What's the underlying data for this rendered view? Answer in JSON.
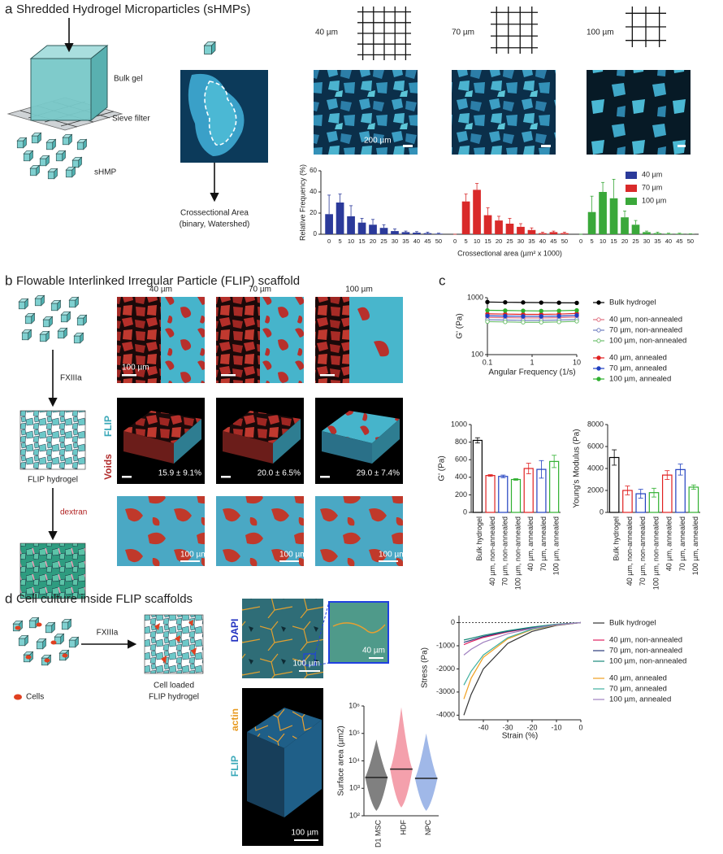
{
  "panels": {
    "a": {
      "letter": "a",
      "title": "Shredded Hydrogel Microparticles (sHMPs)",
      "bulk_gel": "Bulk gel",
      "sieve_filter": "Sieve filter",
      "shmp": "sHMP",
      "area_label": [
        "Crossectional Area",
        "(binary, Watershed)"
      ],
      "sieves": [
        "40 µm",
        "70 µm",
        "100 µm"
      ],
      "scale_bar": "200 µm"
    },
    "b": {
      "letter": "b",
      "title": "Flowable Interlinked Irregular Particle (FLIP) scaffold",
      "fxiiia": "FXIIIa",
      "flip_hydrogel": "FLIP hydrogel",
      "dextran": "dextran",
      "columns": [
        "40 µm",
        "70 µm",
        "100 µm"
      ],
      "scale_bar": "100 µm",
      "flip": "FLIP",
      "voids": "Voids",
      "porosity": [
        "15.9 ± 9.1%",
        "20.0 ± 6.5%",
        "29.0 ± 7.4%"
      ]
    },
    "c": {
      "letter": "c"
    },
    "d": {
      "letter": "d",
      "title": "Cell culture inside FLIP scaffolds",
      "fxiiia": "FXIIIa",
      "cells": "Cells",
      "cell_loaded": [
        "Cell loaded",
        "FLIP hydrogel"
      ],
      "stain_flip": "FLIP",
      "stain_actin": "actin",
      "stain_dapi": "DAPI",
      "zoom_scale": "40 µm",
      "scale_bar": "100 µm"
    }
  },
  "chart_data": [
    {
      "type": "bar",
      "ylabel": "Relative Frequency (%)",
      "xlabel": "Crossectional area (µm² x 1000)",
      "categories": [
        "0",
        "5",
        "10",
        "15",
        "20",
        "25",
        "30",
        "35",
        "40",
        "45",
        "50"
      ],
      "series": [
        {
          "name": "40 µm",
          "color": "#2b3a9a",
          "values": [
            19,
            30,
            17,
            11,
            9,
            6,
            3,
            2,
            1.5,
            1,
            0.5
          ],
          "errors": [
            18,
            8,
            10,
            4,
            5,
            3,
            2,
            1,
            1,
            1,
            0.5
          ]
        },
        {
          "name": "70 µm",
          "color": "#d92a2a",
          "values": [
            0,
            31,
            42,
            18,
            13,
            10,
            7,
            4,
            1,
            2,
            1
          ],
          "errors": [
            0,
            7,
            6,
            7,
            4,
            5,
            3,
            2,
            1,
            1,
            1
          ]
        },
        {
          "name": "100 µm",
          "color": "#3aa83a",
          "values": [
            0,
            21,
            40,
            34,
            16,
            9,
            2,
            1,
            0.5,
            0.5,
            0.2
          ],
          "errors": [
            0,
            15,
            9,
            18,
            6,
            4,
            1,
            1,
            0.5,
            0.5,
            0.2
          ]
        }
      ],
      "ylim": [
        0,
        60
      ],
      "yticks": [
        0,
        20,
        40,
        60
      ],
      "legend": "upper right"
    },
    {
      "type": "line",
      "xlabel": "Angular Frequency (1/s)",
      "ylabel": "G' (Pa)",
      "x": [
        0.1,
        0.25,
        0.63,
        1.6,
        4,
        10
      ],
      "xlog": true,
      "ylog": true,
      "xlim": [
        0.1,
        10
      ],
      "ylim": [
        100,
        1000
      ],
      "xticks": [
        0.1,
        1,
        10
      ],
      "yticks": [
        100,
        1000
      ],
      "series": [
        {
          "name": "Bulk hydrogel",
          "color": "#000000",
          "marker": "filled",
          "values": [
            840,
            830,
            825,
            820,
            815,
            810
          ]
        },
        {
          "name": "40 µm, non-annealed",
          "color": "#e07080",
          "marker": "open",
          "values": [
            450,
            445,
            440,
            440,
            445,
            460
          ]
        },
        {
          "name": "70 µm, non-annealed",
          "color": "#7080c0",
          "marker": "open",
          "values": [
            410,
            405,
            400,
            400,
            405,
            415
          ]
        },
        {
          "name": "100 µm, non-annealed",
          "color": "#70c070",
          "marker": "open",
          "values": [
            380,
            375,
            370,
            370,
            375,
            385
          ]
        },
        {
          "name": "40 µm, annealed",
          "color": "#e02020",
          "marker": "filled",
          "values": [
            520,
            515,
            510,
            510,
            515,
            530
          ]
        },
        {
          "name": "70 µm, annealed",
          "color": "#2040c0",
          "marker": "filled",
          "values": [
            480,
            475,
            470,
            470,
            475,
            490
          ]
        },
        {
          "name": "100 µm, annealed",
          "color": "#30b030",
          "marker": "filled",
          "values": [
            600,
            595,
            590,
            585,
            590,
            600
          ]
        }
      ]
    },
    {
      "type": "bar",
      "ylabel": "G' (Pa)",
      "categories": [
        "Bulk hydrogel",
        "40 µm, non-annealed",
        "70 µm, non-annealed",
        "100 µm, non-annealed",
        "40 µm, annealed",
        "70 µm, annealed",
        "100 µm, annealed"
      ],
      "colors": [
        "#000000",
        "#e02020",
        "#2040c0",
        "#30b030",
        "#e02020",
        "#2040c0",
        "#30b030"
      ],
      "values": [
        820,
        420,
        410,
        375,
        500,
        490,
        580
      ],
      "errors": [
        30,
        10,
        15,
        10,
        60,
        100,
        70
      ],
      "ylim": [
        0,
        1000
      ],
      "yticks": [
        0,
        200,
        400,
        600,
        800,
        1000
      ]
    },
    {
      "type": "bar",
      "ylabel": "Young's Modulus (Pa)",
      "categories": [
        "Bulk hydrogel",
        "40 µm, non-annealed",
        "70 µm, non-annealed",
        "100 µm, non-annealed",
        "40 µm, annealed",
        "70 µm, annealed",
        "100 µm, annealed"
      ],
      "colors": [
        "#000000",
        "#e02020",
        "#2040c0",
        "#30b030",
        "#e02020",
        "#2040c0",
        "#30b030"
      ],
      "values": [
        5000,
        2000,
        1700,
        1800,
        3400,
        3900,
        2300
      ],
      "errors": [
        700,
        400,
        400,
        400,
        400,
        500,
        200
      ],
      "ylim": [
        0,
        8000
      ],
      "yticks": [
        0,
        2000,
        4000,
        6000,
        8000
      ]
    },
    {
      "type": "line",
      "xlabel": "Strain (%)",
      "ylabel": "Stress (Pa)",
      "x": [
        -48,
        -45,
        -40,
        -30,
        -20,
        -10,
        0
      ],
      "xlim": [
        -50,
        0
      ],
      "ylim": [
        -4200,
        300
      ],
      "xticks": [
        -40,
        -30,
        -20,
        -10,
        0
      ],
      "yticks": [
        -4000,
        -3000,
        -2000,
        -1000,
        0
      ],
      "series": [
        {
          "name": "Bulk hydrogel",
          "color": "#333333",
          "values": [
            -4000,
            -3100,
            -2000,
            -900,
            -380,
            -120,
            0
          ]
        },
        {
          "name": "40 µm, non-annealed",
          "color": "#e02060",
          "values": [
            -950,
            -820,
            -640,
            -400,
            -230,
            -90,
            0
          ]
        },
        {
          "name": "70 µm, non-annealed",
          "color": "#2a3a7a",
          "values": [
            -850,
            -760,
            -600,
            -380,
            -210,
            -80,
            0
          ]
        },
        {
          "name": "100 µm, non-annealed",
          "color": "#1a8a7a",
          "values": [
            -750,
            -680,
            -550,
            -350,
            -190,
            -70,
            0
          ]
        },
        {
          "name": "40 µm, annealed",
          "color": "#f0a020",
          "values": [
            -3300,
            -2400,
            -1500,
            -700,
            -300,
            -100,
            0
          ]
        },
        {
          "name": "70 µm, annealed",
          "color": "#40b0a0",
          "values": [
            -2700,
            -2100,
            -1400,
            -650,
            -280,
            -90,
            0
          ]
        },
        {
          "name": "100 µm, annealed",
          "color": "#a080c0",
          "values": [
            -1400,
            -1150,
            -850,
            -480,
            -250,
            -90,
            0
          ]
        }
      ]
    },
    {
      "type": "swarm",
      "ylabel": "Surface area (µm2)",
      "categories": [
        "D1 MSC",
        "HDF",
        "NPC"
      ],
      "colors": [
        "#555555",
        "#f08090",
        "#80a0e0"
      ],
      "values": [
        2500,
        5000,
        2300
      ],
      "ranges": [
        [
          150,
          60000
        ],
        [
          200,
          900000
        ],
        [
          150,
          100000
        ]
      ],
      "ylog": true,
      "ylim": [
        100,
        1000000
      ],
      "yticks": [
        {
          "value": 100,
          "label": "10²"
        },
        {
          "value": 1000,
          "label": "10³"
        },
        {
          "value": 10000,
          "label": "10⁴"
        },
        {
          "value": 100000,
          "label": "10⁵"
        },
        {
          "value": 1000000,
          "label": "10⁶"
        }
      ]
    }
  ]
}
